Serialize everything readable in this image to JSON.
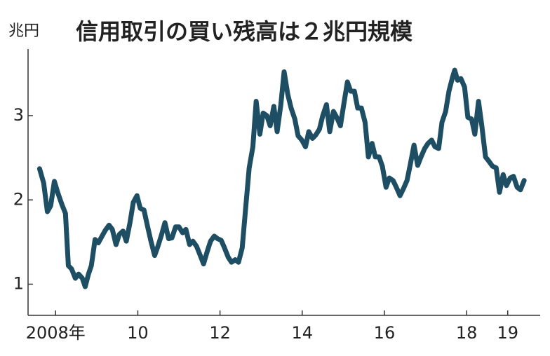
{
  "chart_data": {
    "type": "line",
    "title": "信用取引の買い残高は２兆円規模",
    "y_label": "兆円",
    "color": "#1d4e63",
    "xlim": [
      2007.33,
      2019.79
    ],
    "ylim": [
      0.63,
      3.79
    ],
    "xticks": [
      {
        "value": 2008,
        "label": "2008年"
      },
      {
        "value": 2010,
        "label": "10"
      },
      {
        "value": 2012,
        "label": "12"
      },
      {
        "value": 2014,
        "label": "14"
      },
      {
        "value": 2016,
        "label": "16"
      },
      {
        "value": 2018,
        "label": "18"
      },
      {
        "value": 2019,
        "label": "19"
      }
    ],
    "yticks": [
      1,
      2,
      3
    ],
    "x": [
      2007.61,
      2007.71,
      2007.8,
      2007.88,
      2007.97,
      2008.05,
      2008.15,
      2008.24,
      2008.31,
      2008.39,
      2008.48,
      2008.56,
      2008.65,
      2008.72,
      2008.8,
      2008.87,
      2008.96,
      2009.04,
      2009.13,
      2009.21,
      2009.3,
      2009.38,
      2009.47,
      2009.55,
      2009.64,
      2009.72,
      2009.81,
      2009.89,
      2009.98,
      2010.06,
      2010.15,
      2010.24,
      2010.32,
      2010.41,
      2010.49,
      2010.58,
      2010.66,
      2010.75,
      2010.83,
      2010.92,
      2011.0,
      2011.09,
      2011.17,
      2011.26,
      2011.34,
      2011.43,
      2011.52,
      2011.6,
      2011.69,
      2011.77,
      2011.86,
      2011.94,
      2012.03,
      2012.11,
      2012.2,
      2012.28,
      2012.37,
      2012.45,
      2012.54,
      2012.62,
      2012.71,
      2012.8,
      2012.88,
      2012.97,
      2013.05,
      2013.14,
      2013.22,
      2013.31,
      2013.39,
      2013.48,
      2013.56,
      2013.65,
      2013.73,
      2013.82,
      2013.9,
      2013.99,
      2014.08,
      2014.16,
      2014.25,
      2014.33,
      2014.42,
      2014.5,
      2014.59,
      2014.67,
      2014.76,
      2014.84,
      2014.93,
      2015.01,
      2015.1,
      2015.18,
      2015.27,
      2015.35,
      2015.44,
      2015.53,
      2015.61,
      2015.7,
      2015.78,
      2015.87,
      2015.95,
      2016.04,
      2016.12,
      2016.21,
      2016.29,
      2016.38,
      2016.46,
      2016.55,
      2016.63,
      2016.72,
      2016.81,
      2016.89,
      2016.98,
      2017.06,
      2017.15,
      2017.23,
      2017.32,
      2017.4,
      2017.49,
      2017.57,
      2017.66,
      2017.71,
      2017.78,
      2017.86,
      2017.95,
      2018.03,
      2018.12,
      2018.2,
      2018.29,
      2018.37,
      2018.46,
      2018.54,
      2018.63,
      2018.72,
      2018.8,
      2018.89,
      2018.97,
      2019.06,
      2019.14,
      2019.23,
      2019.31,
      2019.4
    ],
    "values": [
      2.37,
      2.2,
      1.86,
      1.93,
      2.22,
      2.09,
      1.95,
      1.84,
      1.22,
      1.18,
      1.07,
      1.12,
      1.07,
      0.97,
      1.12,
      1.22,
      1.53,
      1.49,
      1.57,
      1.64,
      1.7,
      1.65,
      1.47,
      1.59,
      1.63,
      1.51,
      1.73,
      1.97,
      2.05,
      1.9,
      1.88,
      1.68,
      1.51,
      1.34,
      1.45,
      1.59,
      1.73,
      1.54,
      1.55,
      1.68,
      1.68,
      1.61,
      1.65,
      1.47,
      1.51,
      1.45,
      1.34,
      1.24,
      1.39,
      1.51,
      1.57,
      1.54,
      1.52,
      1.43,
      1.32,
      1.26,
      1.29,
      1.26,
      1.43,
      1.88,
      2.38,
      2.63,
      3.17,
      2.78,
      3.03,
      3.0,
      2.88,
      3.11,
      2.81,
      3.13,
      3.52,
      3.25,
      3.09,
      2.96,
      2.76,
      2.71,
      2.63,
      2.81,
      2.73,
      2.77,
      2.84,
      3.0,
      3.13,
      2.81,
      3.05,
      2.98,
      2.88,
      3.13,
      3.4,
      3.29,
      3.29,
      3.09,
      3.09,
      2.92,
      2.51,
      2.67,
      2.51,
      2.51,
      2.4,
      2.15,
      2.26,
      2.23,
      2.15,
      2.05,
      2.13,
      2.23,
      2.42,
      2.65,
      2.41,
      2.51,
      2.61,
      2.67,
      2.71,
      2.63,
      2.61,
      2.92,
      3.05,
      3.29,
      3.46,
      3.54,
      3.42,
      3.44,
      3.34,
      2.98,
      2.96,
      2.78,
      3.17,
      2.88,
      2.51,
      2.46,
      2.4,
      2.38,
      2.09,
      2.3,
      2.17,
      2.26,
      2.28,
      2.15,
      2.12,
      2.23
    ]
  }
}
